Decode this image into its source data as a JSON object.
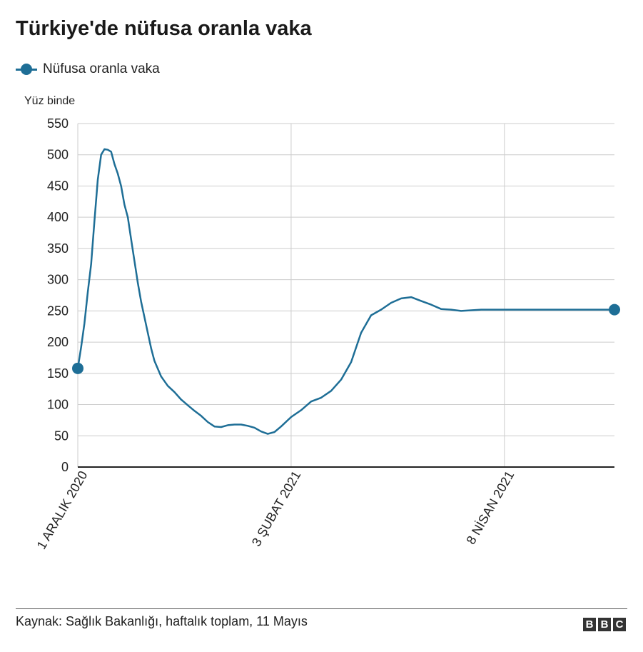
{
  "title": "Türkiye'de nüfusa oranla vaka",
  "legend": {
    "label": "Nüfusa oranla vaka"
  },
  "unit_label": "Yüz binde",
  "source": "Kaynak: Sağlık Bakanlığı, haftalık toplam, 11 Mayıs",
  "logo": [
    "B",
    "B",
    "C"
  ],
  "colors": {
    "series": "#1e6e96",
    "grid": "#cccccc",
    "axis": "#222222"
  },
  "chart_data": {
    "type": "line",
    "title": "Türkiye'de nüfusa oranla vaka",
    "ylabel": "Yüz binde",
    "xlabel": "",
    "ylim": [
      0,
      550
    ],
    "yticks": [
      0,
      50,
      100,
      150,
      200,
      250,
      300,
      350,
      400,
      450,
      500,
      550
    ],
    "x_tick_labels": [
      {
        "date": "2020-12-01",
        "label": "1 ARALIK 2020"
      },
      {
        "date": "2021-02-03",
        "label": "3 ŞUBAT 2021"
      },
      {
        "date": "2021-04-08",
        "label": "8 NİSAN 2021"
      }
    ],
    "xlim": [
      "2020-12-01",
      "2021-05-11"
    ],
    "grid": true,
    "legend_position": "top-left",
    "series": [
      {
        "name": "Nüfusa oranla vaka",
        "x": [
          "2020-12-01",
          "2020-12-02",
          "2020-12-03",
          "2020-12-04",
          "2020-12-05",
          "2020-12-06",
          "2020-12-07",
          "2020-12-08",
          "2020-12-09",
          "2020-12-10",
          "2020-12-11",
          "2020-12-12",
          "2020-12-13",
          "2020-12-14",
          "2020-12-15",
          "2020-12-16",
          "2020-12-17",
          "2020-12-18",
          "2020-12-19",
          "2020-12-20",
          "2020-12-21",
          "2020-12-22",
          "2020-12-23",
          "2020-12-24",
          "2020-12-26",
          "2020-12-28",
          "2020-12-30",
          "2021-01-01",
          "2021-01-03",
          "2021-01-05",
          "2021-01-07",
          "2021-01-09",
          "2021-01-11",
          "2021-01-13",
          "2021-01-15",
          "2021-01-17",
          "2021-01-19",
          "2021-01-21",
          "2021-01-23",
          "2021-01-25",
          "2021-01-27",
          "2021-01-29",
          "2021-01-31",
          "2021-02-03",
          "2021-02-06",
          "2021-02-09",
          "2021-02-12",
          "2021-02-15",
          "2021-02-18",
          "2021-02-21",
          "2021-02-24",
          "2021-02-27",
          "2021-03-02",
          "2021-03-05",
          "2021-03-08",
          "2021-03-11",
          "2021-03-14",
          "2021-03-17",
          "2021-03-20",
          "2021-03-23",
          "2021-03-26",
          "2021-03-29",
          "2021-04-01",
          "2021-04-04",
          "2021-04-08",
          "2021-04-11",
          "2021-04-14",
          "2021-04-16",
          "2021-04-18",
          "2021-04-20",
          "2021-04-22",
          "2021-04-24",
          "2021-04-26",
          "2021-04-28",
          "2021-04-30",
          "2021-05-02",
          "2021-05-04",
          "2021-05-06",
          "2021-05-08",
          "2021-05-11"
        ],
        "y": [
          158,
          192,
          230,
          280,
          325,
          395,
          460,
          500,
          509,
          508,
          505,
          485,
          470,
          450,
          420,
          400,
          365,
          330,
          295,
          265,
          240,
          215,
          190,
          170,
          145,
          130,
          120,
          108,
          99,
          90,
          82,
          72,
          65,
          64,
          67,
          68,
          68,
          66,
          63,
          57,
          53,
          56,
          65,
          80,
          91,
          105,
          111,
          122,
          140,
          168,
          215,
          243,
          252,
          263,
          270,
          272,
          266,
          260,
          253,
          252,
          250,
          251,
          252,
          252,
          252,
          252,
          252,
          252,
          252,
          252,
          252,
          252,
          252,
          252,
          252,
          252,
          252,
          252,
          252,
          252
        ]
      }
    ]
  }
}
